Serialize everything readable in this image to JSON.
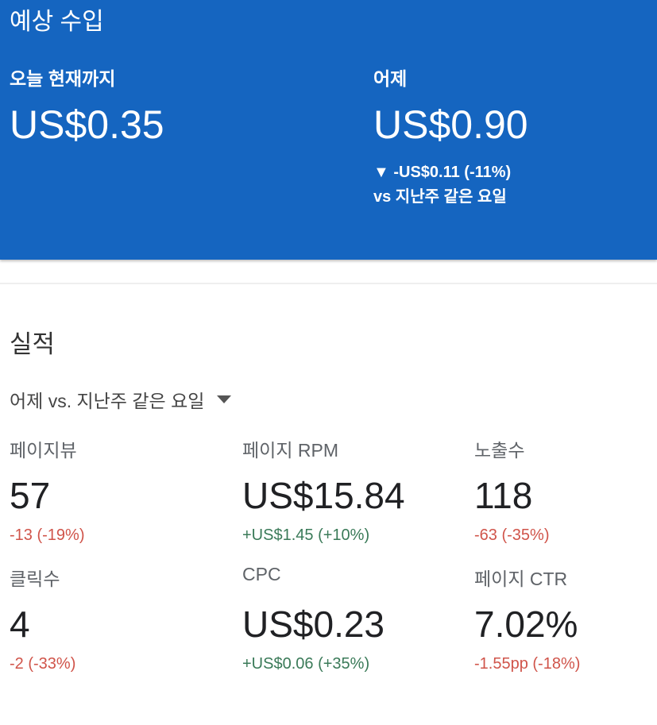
{
  "header": {
    "title": "예상 수입",
    "today": {
      "label": "오늘 현재까지",
      "value": "US$0.35"
    },
    "yesterday": {
      "label": "어제",
      "value": "US$0.90",
      "change": "▼ -US$0.11 (-11%)",
      "comparison": "vs 지난주 같은 요일"
    },
    "color": "#1565c0"
  },
  "performance": {
    "title": "실적",
    "period_dropdown": "어제 vs. 지난주 같은 요일",
    "metrics": [
      {
        "label": "페이지뷰",
        "value": "57",
        "change": "-13 (-19%)",
        "trend": "negative"
      },
      {
        "label": "페이지 RPM",
        "value": "US$15.84",
        "change": "+US$1.45 (+10%)",
        "trend": "positive"
      },
      {
        "label": "노출수",
        "value": "118",
        "change": "-63 (-35%)",
        "trend": "negative"
      },
      {
        "label": "클릭수",
        "value": "4",
        "change": "-2 (-33%)",
        "trend": "negative"
      },
      {
        "label": "CPC",
        "value": "US$0.23",
        "change": "+US$0.06 (+35%)",
        "trend": "positive"
      },
      {
        "label": "페이지 CTR",
        "value": "7.02%",
        "change": "-1.55pp (-18%)",
        "trend": "negative"
      }
    ],
    "colors": {
      "negative": "#d0544a",
      "positive": "#3a7a58"
    }
  }
}
